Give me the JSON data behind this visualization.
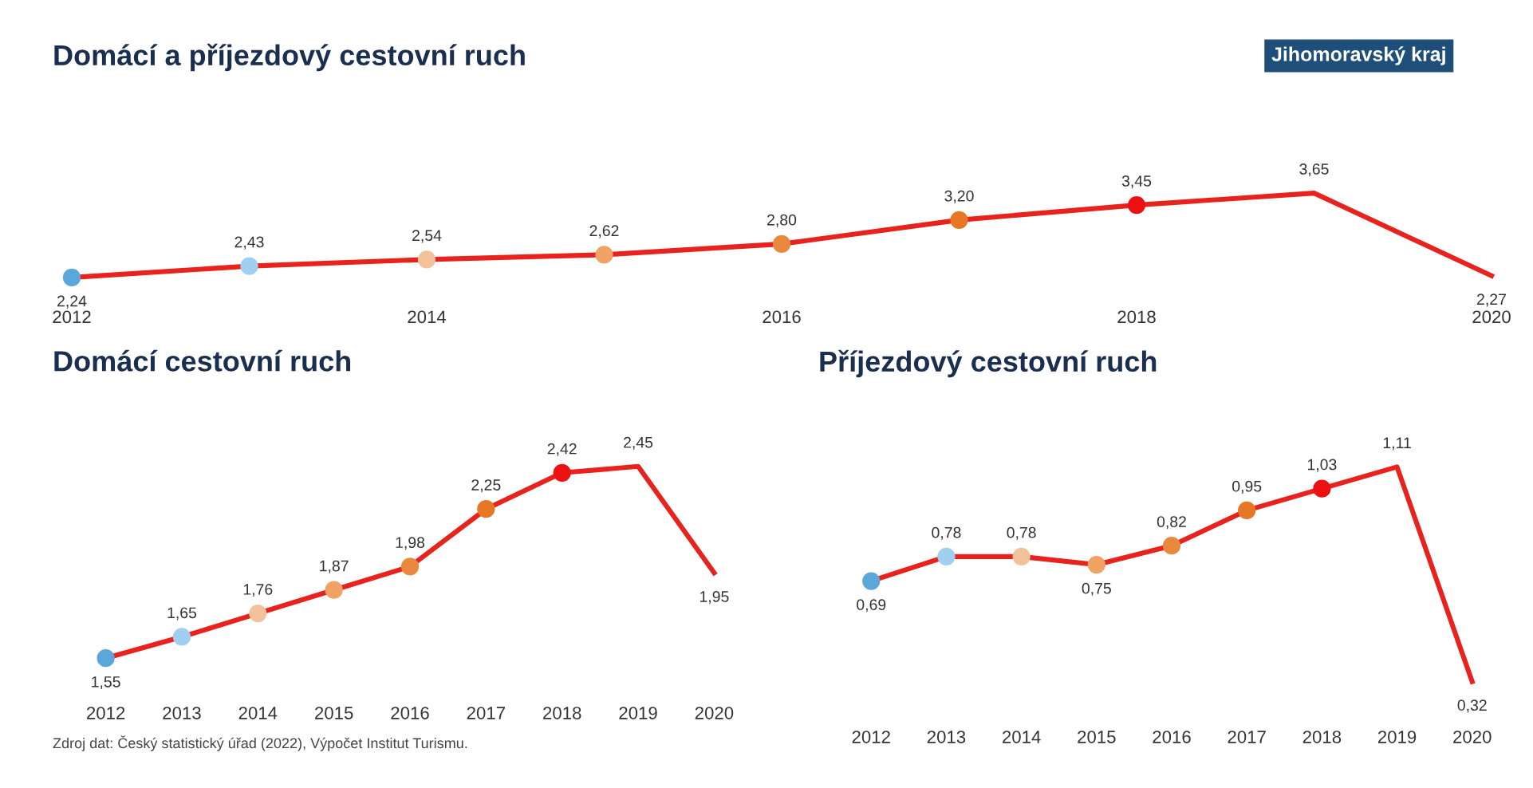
{
  "chart_data": [
    {
      "type": "line",
      "title": "Domácí a příjezdový cestovní ruch",
      "x": [
        2012,
        2013,
        2014,
        2015,
        2016,
        2017,
        2018,
        2019,
        2020
      ],
      "xlim": [
        2012,
        2020
      ],
      "xticks": [
        2012,
        2014,
        2016,
        2018,
        2020
      ],
      "tick_labels": "x",
      "grid": false,
      "legend": false,
      "marker": "circle",
      "series": [
        {
          "color": "#e8231e",
          "values": [
            2.24,
            2.43,
            2.54,
            2.62,
            2.8,
            3.2,
            3.45,
            3.65,
            2.27
          ],
          "value_labels": [
            "2,24",
            "2,43",
            "2,54",
            "2,62",
            "2,80",
            "3,20",
            "3,45",
            "3,65",
            "2,27"
          ],
          "colors": [
            "#5ba7d9",
            "#9fd0ef",
            "#f2c29a",
            "#f0a365",
            "#e8893e",
            "#e57725",
            "#ee1111",
            null,
            null
          ]
        }
      ],
      "annotations": [
        "Jihomoravský kraj"
      ]
    },
    {
      "type": "line",
      "title": "Domácí cestovní ruch",
      "categories": [
        "2012",
        "2013",
        "2014",
        "2015",
        "2016",
        "2017",
        "2018",
        "2019",
        "2020"
      ],
      "tick_labels": "x",
      "grid": false,
      "legend": false,
      "marker": "circle",
      "series": [
        {
          "color": "#e8231e",
          "values": [
            1.55,
            1.65,
            1.76,
            1.87,
            1.98,
            2.25,
            2.42,
            2.45,
            1.95
          ],
          "value_labels": [
            "1,55",
            "1,65",
            "1,76",
            "1,87",
            "1,98",
            "2,25",
            "2,42",
            "2,45",
            "1,95"
          ],
          "colors": [
            "#5ba7d9",
            "#9fd0ef",
            "#f2c29a",
            "#f0a365",
            "#e8893e",
            "#e57725",
            "#ee1111",
            null,
            null
          ]
        }
      ],
      "annotations": [
        "Zdroj dat: Český statistický úřad (2022), Výpočet Institut Turismu."
      ]
    },
    {
      "type": "line",
      "title": "Příjezdový cestovní ruch",
      "categories": [
        "2012",
        "2013",
        "2014",
        "2015",
        "2016",
        "2017",
        "2018",
        "2019",
        "2020"
      ],
      "tick_labels": "x",
      "grid": false,
      "legend": false,
      "marker": "circle",
      "series": [
        {
          "color": "#e8231e",
          "values": [
            0.69,
            0.78,
            0.78,
            0.75,
            0.82,
            0.95,
            1.03,
            1.11,
            0.32
          ],
          "value_labels": [
            "0,69",
            "0,78",
            "0,78",
            "0,75",
            "0,82",
            "0,95",
            "1,03",
            "1,11",
            "0,32"
          ],
          "colors": [
            "#5ba7d9",
            "#9fd0ef",
            "#f2c29a",
            "#f0a365",
            "#e8893e",
            "#e57725",
            "#ee1111",
            null,
            null
          ]
        }
      ]
    }
  ]
}
